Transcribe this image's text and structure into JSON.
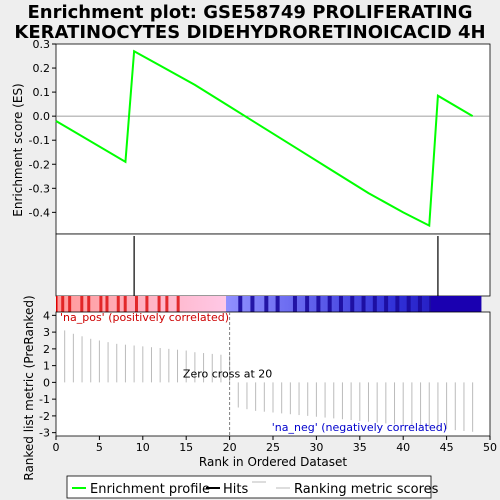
{
  "chart_data": {
    "type": "line",
    "title_lines": [
      "Enrichment plot: GSE58749 PROLIFERATING",
      "KERATINOCYTES DIDEHYDRORETINOICACID 4H"
    ],
    "es_panel": {
      "ylabel": "Enrichment score (ES)",
      "ylim": [
        -0.49,
        0.3
      ],
      "yticks": [
        0.3,
        0.2,
        0.1,
        0.0,
        -0.1,
        -0.2,
        -0.3,
        -0.4
      ],
      "ytick_labels": [
        "0.3",
        "0.2",
        "0.1",
        "0.0",
        "-0.1",
        "-0.2",
        "-0.3",
        "-0.4"
      ],
      "x": [
        0,
        8,
        9,
        12,
        16,
        20,
        24,
        28,
        32,
        36,
        40,
        43,
        44,
        48
      ],
      "y": [
        -0.02,
        -0.19,
        0.27,
        0.21,
        0.13,
        0.04,
        -0.05,
        -0.14,
        -0.23,
        -0.32,
        -0.4,
        -0.455,
        0.085,
        0.0
      ],
      "line_color": "#00ff00"
    },
    "hits": [
      9,
      44
    ],
    "colorbar": {
      "red_stripes": [
        0.6,
        1.4,
        2.8,
        3.6,
        5.0,
        5.7,
        7.0,
        7.8,
        9.1,
        10.3,
        11.7,
        12.6,
        13.9
      ],
      "blue_stripes": [
        21.0,
        22.4,
        24.0,
        25.3,
        27.3,
        28.7,
        30.0,
        31.3,
        32.6,
        33.9,
        35.2,
        36.5,
        37.8,
        39.1,
        40.4,
        41.7,
        43.0
      ]
    },
    "ranked_panel": {
      "ylabel": "Ranked list metric (PreRanked)",
      "xlabel": "Rank in Ordered Dataset",
      "ylim": [
        -3.2,
        4.2
      ],
      "yticks": [
        4,
        3,
        2,
        1,
        0,
        -1,
        -2,
        -3
      ],
      "ytick_labels": [
        "4",
        "3",
        "2",
        "1",
        "0",
        "-1",
        "-2",
        "-3"
      ],
      "xlim": [
        0,
        50
      ],
      "xticks": [
        0,
        5,
        10,
        15,
        20,
        25,
        30,
        35,
        40,
        45,
        50
      ],
      "xtick_labels": [
        "0",
        "5",
        "10",
        "15",
        "20",
        "25",
        "30",
        "35",
        "40",
        "45",
        "50"
      ],
      "values": [
        3.1,
        2.9,
        2.75,
        2.6,
        2.5,
        2.4,
        2.3,
        2.25,
        2.2,
        2.15,
        2.1,
        2.05,
        2.0,
        1.95,
        1.9,
        1.8,
        1.75,
        1.7,
        1.65,
        1.6,
        -1.5,
        -1.6,
        -1.7,
        -1.75,
        -1.8,
        -1.85,
        -1.9,
        -1.95,
        -2.0,
        -2.05,
        -2.1,
        -2.15,
        -2.2,
        -2.25,
        -2.3,
        -2.35,
        -2.4,
        -2.45,
        -2.5,
        -2.55,
        -2.6,
        -2.65,
        -2.7,
        -2.75,
        -2.8,
        -2.85,
        -2.9,
        -2.95
      ],
      "zero_cross": 20,
      "zero_cross_label": "Zero cross at 20",
      "pos_label": "'na_pos' (positively correlated)",
      "neg_label": "'na_neg' (negatively correlated)"
    },
    "legend": {
      "items": [
        "Enrichment profile",
        "Hits",
        "Ranking metric scores"
      ]
    }
  },
  "colors": {
    "enrichment": "#00ff00",
    "pos_text": "#cc0000",
    "neg_text": "#0000cc",
    "bar_line": "#bbbbbb",
    "hit": "#000000"
  }
}
